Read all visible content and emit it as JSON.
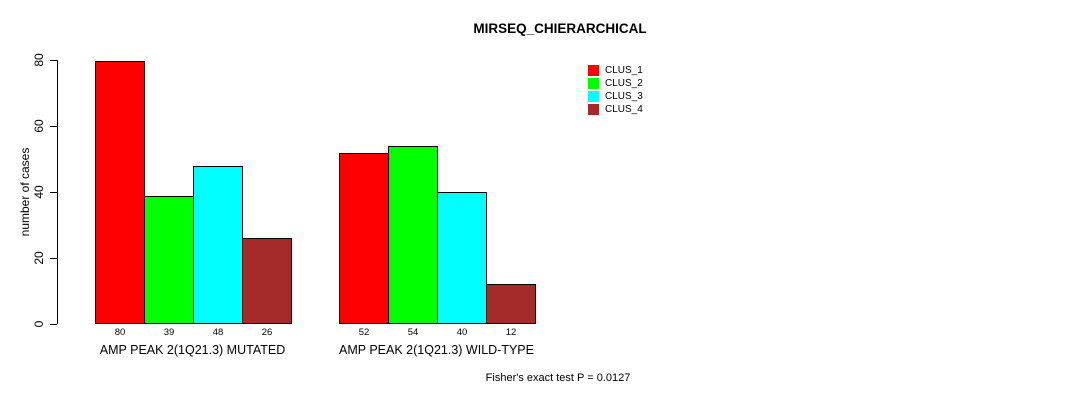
{
  "chart_data": {
    "type": "bar",
    "title": "MIRSEQ_CHIERARCHICAL",
    "xlabel": "",
    "ylabel": "number of cases",
    "ylim": [
      0,
      80
    ],
    "yticks": [
      0,
      20,
      40,
      60,
      80
    ],
    "grid": false,
    "legend_position": "top-right",
    "bar_value_labels_shown": true,
    "categories": [
      "AMP PEAK 2(1Q21.3) MUTATED",
      "AMP PEAK 2(1Q21.3) WILD-TYPE"
    ],
    "series": [
      {
        "name": "CLUS_1",
        "color": "#FF0000",
        "values": [
          80,
          52
        ]
      },
      {
        "name": "CLUS_2",
        "color": "#00FF00",
        "values": [
          39,
          54
        ]
      },
      {
        "name": "CLUS_3",
        "color": "#00FFFF",
        "values": [
          48,
          40
        ]
      },
      {
        "name": "CLUS_4",
        "color": "#A52A2A",
        "values": [
          26,
          12
        ]
      }
    ],
    "annotation": "Fisher's exact test P = 0.0127",
    "colors": {
      "background": "#FFFFFF",
      "axis": "#000000",
      "bar_border": "#000000",
      "text": "#000000"
    }
  }
}
